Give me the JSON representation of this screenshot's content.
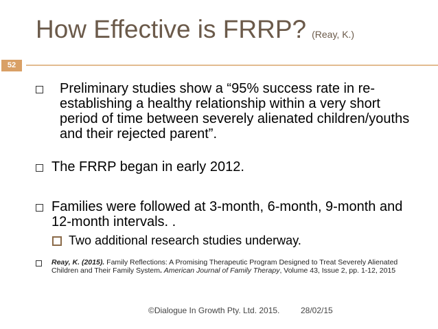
{
  "title": {
    "main": "How Effective is FRRP?",
    "sub": "(Reay, K.)"
  },
  "slide_number": "52",
  "bullets": [
    "Preliminary studies show a “95% success rate in re-establishing a healthy relationship within a very short period of time between severely alienated children/youths and their rejected parent”.",
    "The FRRP began in early 2012.",
    "Families were followed at 3-month, 6-month, 9-month and 12-month intervals. ."
  ],
  "sub_bullet": "Two additional research studies underway.",
  "reference": {
    "author": "Reay, K. (2015).",
    "text1": " Family Reflections: A Promising Therapeutic Program Designed to Treat Severely Alienated Children and Their Family System",
    "dot": ". ",
    "journal": "American Journal of Family Therapy",
    "text2": ", Volume 43, Issue 2, pp. 1-12, 2015"
  },
  "footer": {
    "copyright": "©Dialogue In Growth Pty. Ltd. 2015.",
    "date": "28/02/15"
  }
}
